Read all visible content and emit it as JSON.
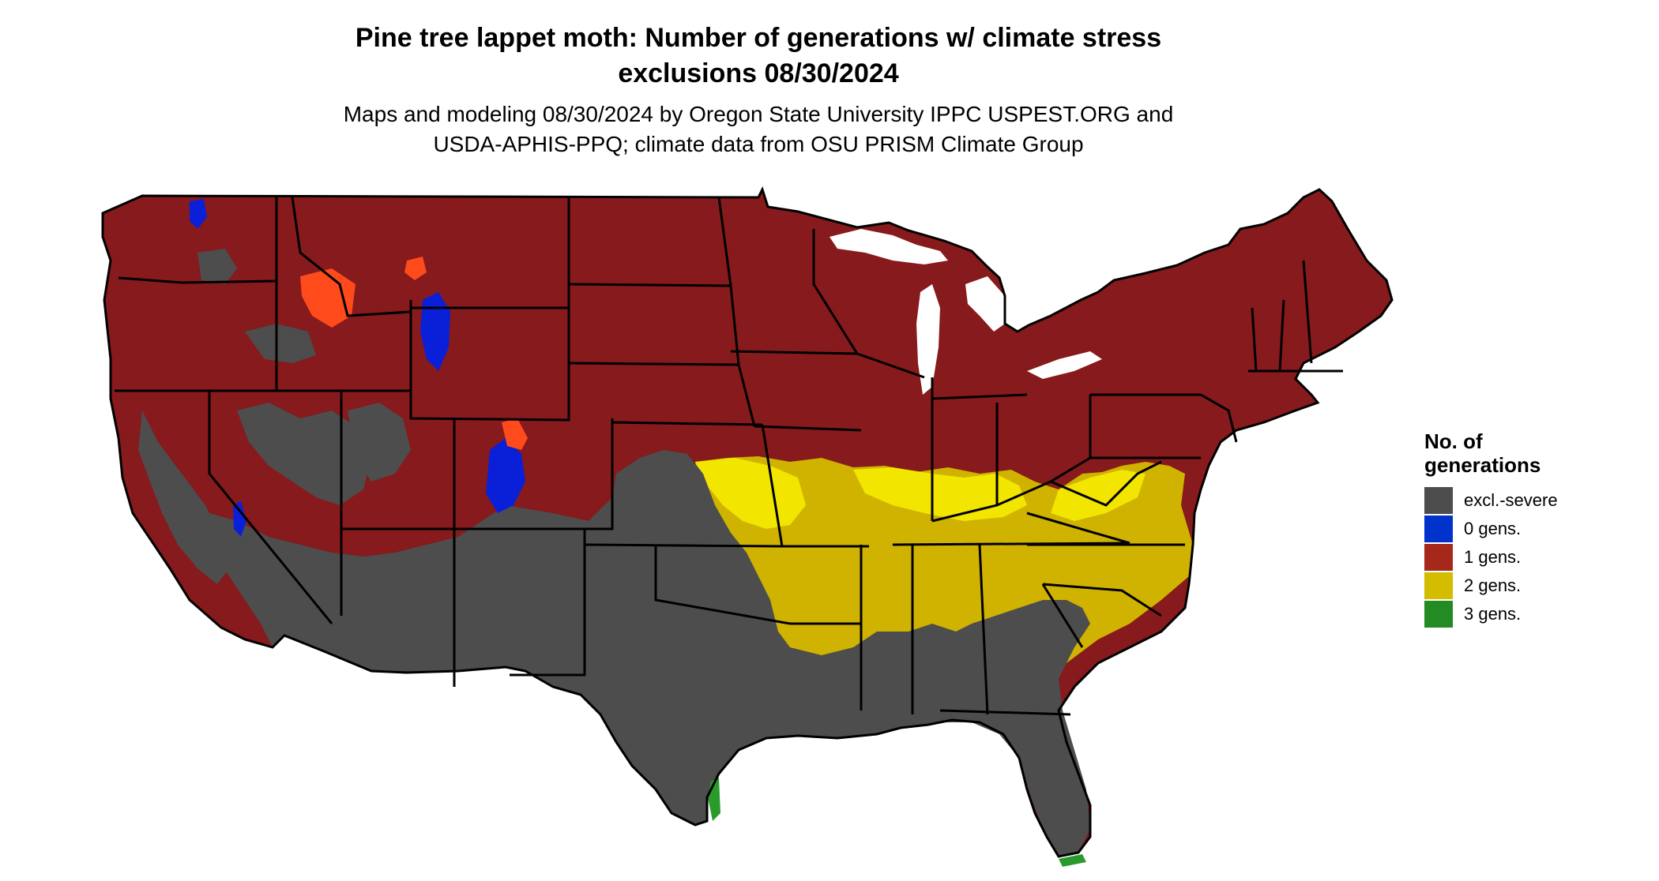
{
  "title_line1": "Pine tree lappet moth: Number of generations w/ climate stress",
  "title_line2": "exclusions 08/30/2024",
  "subtitle_line1": "Maps and modeling 08/30/2024 by Oregon State University IPPC USPEST.ORG and",
  "subtitle_line2": "USDA-APHIS-PPQ; climate data from OSU PRISM Climate Group",
  "legend": {
    "title_line1": "No. of",
    "title_line2": "generations",
    "items": [
      {
        "label": "excl.-severe",
        "color": "#4d4d4d"
      },
      {
        "label": "0 gens.",
        "color": "#0033cc"
      },
      {
        "label": "1 gens.",
        "color": "#a6281a"
      },
      {
        "label": "2 gens.",
        "color": "#d4bc00"
      },
      {
        "label": "3 gens.",
        "color": "#228b22"
      }
    ]
  },
  "colors": {
    "gen1_region": "#861a1c",
    "gen2_region": "#cfb300",
    "gen2_bright": "#f2e600",
    "excluded": "#4d4d4d",
    "gen0": "#0a1fd8",
    "gen1_orange": "#ff4a1c",
    "gen3": "#2a9a2a",
    "border": "#000000"
  }
}
